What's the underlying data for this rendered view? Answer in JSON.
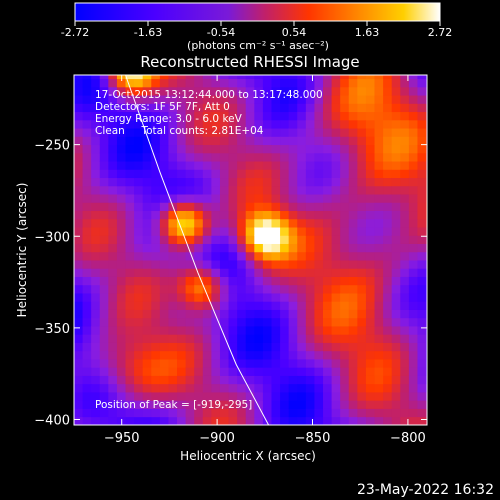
{
  "chart_data": {
    "type": "heatmap",
    "title": "Reconstructed RHESSI Image",
    "colorbar": {
      "min": -2.72,
      "max": 2.72,
      "ticks": [
        "-2.72",
        "-1.63",
        "-0.54",
        "0.54",
        "1.63",
        "2.72"
      ],
      "units_label": "(photons cm⁻² s⁻¹ asec⁻²)",
      "colors": [
        "#0000ff",
        "#4b00ff",
        "#8a1de0",
        "#c0206a",
        "#ff3500",
        "#ff8a00",
        "#ffcf00",
        "#ffffff"
      ]
    },
    "xlabel": "Heliocentric X (arcsec)",
    "ylabel": "Heliocentric Y (arcsec)",
    "xlim": [
      -975,
      -790
    ],
    "ylim": [
      -403,
      -212
    ],
    "x_ticks": [
      -950,
      -900,
      -850,
      -800
    ],
    "y_ticks": [
      -250,
      -300,
      -350,
      -400
    ],
    "x_tick_labels": [
      "−950",
      "−900",
      "−850",
      "−800"
    ],
    "y_tick_labels": [
      "−250",
      "−300",
      "−350",
      "−400"
    ],
    "annotations": [
      "17-Oct-2015 13:12:44.000 to 13:17:48.000",
      "Detectors: 1F 5F 7F, Att 0",
      "Energy Range: 3.0 - 6.0 keV",
      "Clean     Total counts: 2.81E+04"
    ],
    "peak_label": "Position of Peak = [-919,-295]",
    "peak_position": [
      -919,
      -295
    ],
    "limb_curve": [
      [
        -948,
        -212
      ],
      [
        -930,
        -265
      ],
      [
        -910,
        -320
      ],
      [
        -890,
        -370
      ],
      [
        -873,
        -403
      ]
    ],
    "sources": [
      {
        "x": -920,
        "y": -295,
        "value": 2.72
      },
      {
        "x": -877,
        "y": -302,
        "value": 2.4
      },
      {
        "x": -910,
        "y": -330,
        "value": 1.5
      },
      {
        "x": -948,
        "y": -212,
        "value": 2.2
      }
    ]
  },
  "footer": {
    "date": "23-May-2022 16:32"
  }
}
